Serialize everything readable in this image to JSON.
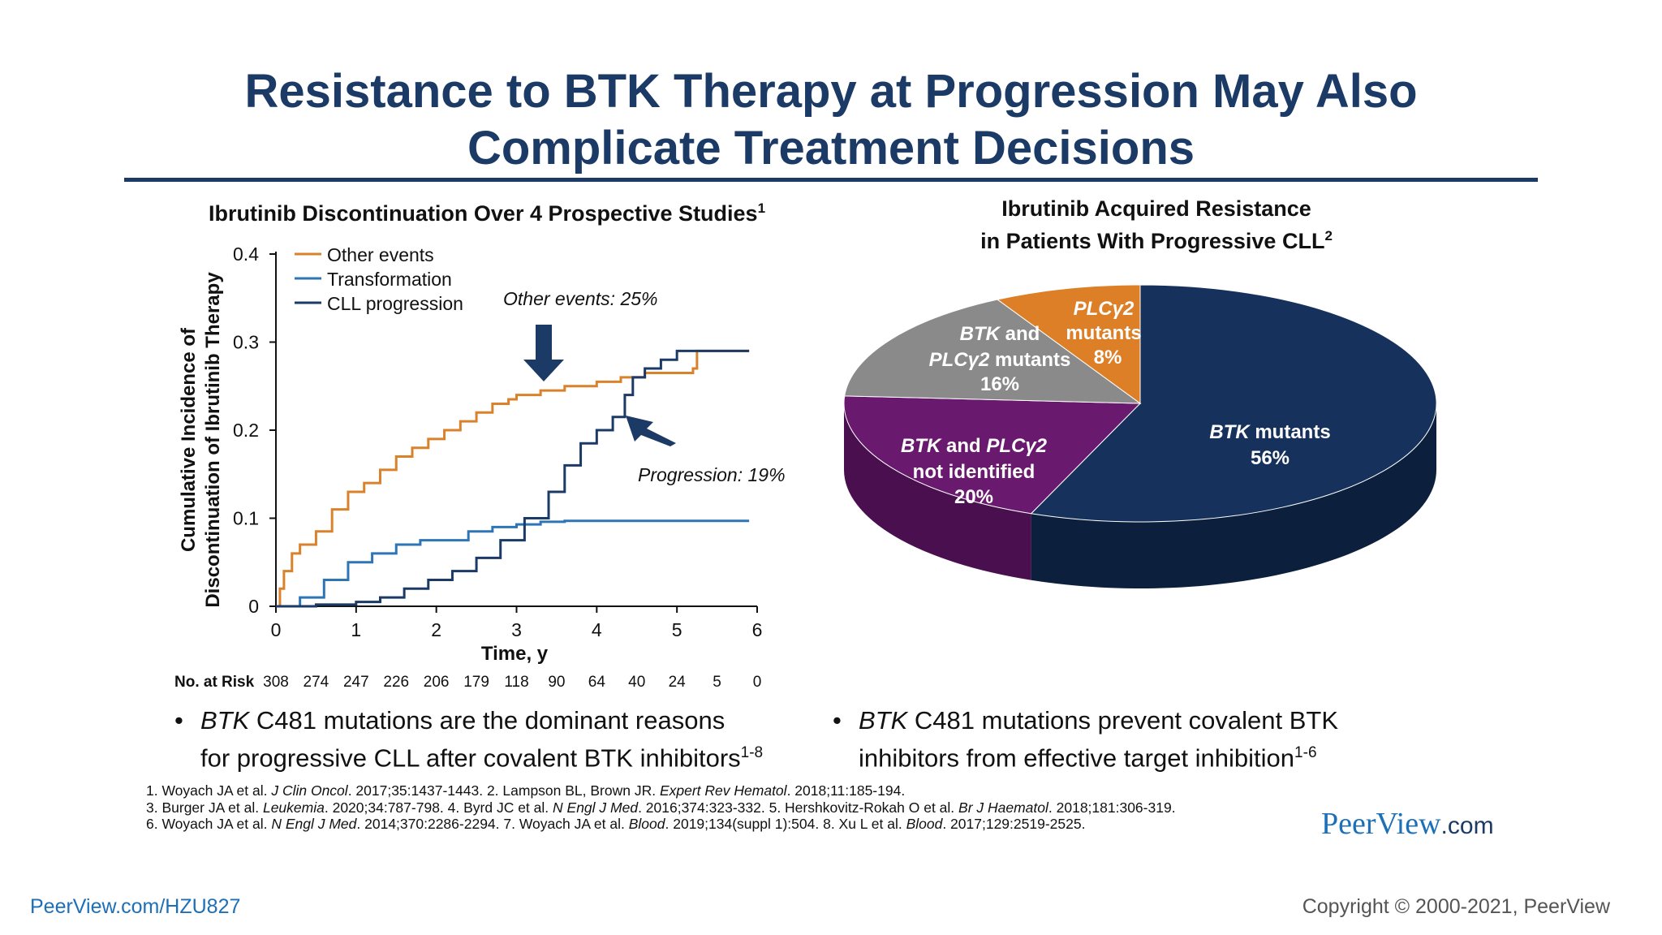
{
  "title_line1": "Resistance to BTK Therapy at Progression May Also",
  "title_line2": "Complicate Treatment Decisions",
  "colors": {
    "title": "#1b3a66",
    "other_events": "#d9822b",
    "transformation": "#2e75b6",
    "cll_progression": "#1b3a66",
    "pie_btk": "#16325c",
    "pie_none": "#6a1a6e",
    "pie_both": "#8a8a8a",
    "pie_plc": "#dc7f27"
  },
  "left_subhead": "Ibrutinib Discontinuation Over 4 Prospective Studies",
  "left_subhead_sup": "1",
  "right_subhead_line1": "Ibrutinib Acquired Resistance",
  "right_subhead_line2": "in Patients With Progressive CLL",
  "right_subhead_sup": "2",
  "chart_data": [
    {
      "type": "line",
      "title": "Ibrutinib Discontinuation Over 4 Prospective Studies",
      "xlabel": "Time, y",
      "ylabel": "Cumulative Incidence of Discontinuation of Ibrutinib Therapy",
      "xlim": [
        0,
        6
      ],
      "ylim": [
        0,
        0.4
      ],
      "x_ticks": [
        "0",
        "1",
        "2",
        "3",
        "4",
        "5",
        "6"
      ],
      "y_ticks": [
        "0",
        "0.1",
        "0.2",
        "0.3",
        "0.4"
      ],
      "legend_position": "top-left",
      "series": [
        {
          "name": "Other events",
          "color": "#d9822b",
          "points": [
            [
              0,
              0
            ],
            [
              0.05,
              0.02
            ],
            [
              0.1,
              0.04
            ],
            [
              0.2,
              0.06
            ],
            [
              0.3,
              0.07
            ],
            [
              0.5,
              0.085
            ],
            [
              0.7,
              0.11
            ],
            [
              0.9,
              0.13
            ],
            [
              1.1,
              0.14
            ],
            [
              1.3,
              0.155
            ],
            [
              1.5,
              0.17
            ],
            [
              1.7,
              0.18
            ],
            [
              1.9,
              0.19
            ],
            [
              2.1,
              0.2
            ],
            [
              2.3,
              0.21
            ],
            [
              2.5,
              0.22
            ],
            [
              2.7,
              0.23
            ],
            [
              2.9,
              0.235
            ],
            [
              3.0,
              0.24
            ],
            [
              3.3,
              0.245
            ],
            [
              3.6,
              0.25
            ],
            [
              4.0,
              0.255
            ],
            [
              4.3,
              0.26
            ],
            [
              4.6,
              0.265
            ],
            [
              5.0,
              0.265
            ],
            [
              5.2,
              0.27
            ],
            [
              5.25,
              0.29
            ],
            [
              5.9,
              0.29
            ]
          ]
        },
        {
          "name": "Transformation",
          "color": "#2e75b6",
          "points": [
            [
              0,
              0
            ],
            [
              0.3,
              0.01
            ],
            [
              0.6,
              0.03
            ],
            [
              0.9,
              0.05
            ],
            [
              1.2,
              0.06
            ],
            [
              1.5,
              0.07
            ],
            [
              1.8,
              0.075
            ],
            [
              2.1,
              0.075
            ],
            [
              2.4,
              0.085
            ],
            [
              2.7,
              0.09
            ],
            [
              3.0,
              0.093
            ],
            [
              3.3,
              0.096
            ],
            [
              3.6,
              0.097
            ],
            [
              4.2,
              0.097
            ],
            [
              5.9,
              0.097
            ]
          ]
        },
        {
          "name": "CLL progression",
          "color": "#1b3a66",
          "points": [
            [
              0,
              0
            ],
            [
              0.5,
              0.002
            ],
            [
              1.0,
              0.005
            ],
            [
              1.3,
              0.01
            ],
            [
              1.6,
              0.02
            ],
            [
              1.9,
              0.03
            ],
            [
              2.2,
              0.04
            ],
            [
              2.5,
              0.055
            ],
            [
              2.8,
              0.075
            ],
            [
              3.1,
              0.1
            ],
            [
              3.4,
              0.13
            ],
            [
              3.6,
              0.16
            ],
            [
              3.8,
              0.185
            ],
            [
              4.0,
              0.2
            ],
            [
              4.2,
              0.215
            ],
            [
              4.35,
              0.24
            ],
            [
              4.45,
              0.26
            ],
            [
              4.6,
              0.27
            ],
            [
              4.8,
              0.28
            ],
            [
              5.0,
              0.29
            ],
            [
              5.9,
              0.29
            ]
          ]
        }
      ],
      "annotations": [
        "Other events: 25%",
        "Progression: 19%"
      ],
      "risk_table": {
        "label": "No. at Risk",
        "values": [
          "308",
          "274",
          "247",
          "226",
          "206",
          "179",
          "118",
          "90",
          "64",
          "40",
          "24",
          "5",
          "0"
        ]
      }
    },
    {
      "type": "pie",
      "title": "Ibrutinib Acquired Resistance in Patients With Progressive CLL",
      "slices": [
        {
          "label": "BTK mutants",
          "value": 56
        },
        {
          "label": "BTK and PLCγ2 not identified",
          "value": 20
        },
        {
          "label": "BTK and PLCγ2 mutants",
          "value": 16
        },
        {
          "label": "PLCγ2 mutants",
          "value": 8
        }
      ]
    }
  ],
  "pie_labels": {
    "btk_a": "BTK",
    "btk_b": " mutants",
    "btk_pct": "56%",
    "none_a": "BTK",
    "none_b": " and ",
    "none_c": "PLCγ2",
    "none_line2": "not identified",
    "none_pct": "20%",
    "both_a": "BTK",
    "both_b": " and",
    "both_c": "PLCγ2",
    "both_d": " mutants",
    "both_pct": "16%",
    "plc_a": "PLCγ2",
    "plc_line2": "mutants",
    "plc_pct": "8%"
  },
  "legend": {
    "other": "Other events",
    "transformation": "Transformation",
    "cll": "CLL progression"
  },
  "annotations": {
    "other": "Other events: 25%",
    "progression": "Progression: 19%"
  },
  "axis": {
    "x_title": "Time, y",
    "y_title_line1": "Cumulative Incidence of",
    "y_title_line2": "Discontinuation of Ibrutinib Therapy"
  },
  "risk_label": "No. at Risk",
  "bullet1": {
    "italic": "BTK",
    "text1": " C481 mutations are the dominant reasons",
    "text2": "for progressive CLL after covalent BTK inhibitors",
    "sup": "1-8"
  },
  "bullet2": {
    "italic": "BTK",
    "text1": " C481 mutations prevent covalent BTK",
    "text2": "inhibitors from effective target inhibition",
    "sup": "1-6"
  },
  "refs": {
    "r1a": "1. Woyach JA et al. ",
    "r1b": "J Clin Oncol",
    "r1c": ". 2017;35:1437-1443. 2. Lampson BL, Brown JR. ",
    "r1d": "Expert Rev Hematol",
    "r1e": ". 2018;11:185-194.",
    "r2a": "3. Burger JA et al. ",
    "r2b": "Leukemia",
    "r2c": ". 2020;34:787-798. 4. Byrd JC et al. ",
    "r2d": "N Engl J Med",
    "r2e": ". 2016;374:323-332. 5. Hershkovitz-Rokah O et al. ",
    "r2f": "Br J Haematol",
    "r2g": ". 2018;181:306-319.",
    "r3a": "6. Woyach JA et al. ",
    "r3b": "N Engl J Med",
    "r3c": ". 2014;370:2286-2294. 7. Woyach JA et al. ",
    "r3d": "Blood",
    "r3e": ". 2019;134(suppl 1):504. 8. Xu L et al. ",
    "r3f": "Blood",
    "r3g": ". 2017;129:2519-2525."
  },
  "brand": {
    "name": "PeerView",
    "suffix": ".com"
  },
  "footer_link": "PeerView.com/HZU827",
  "copyright": "Copyright © 2000-2021, PeerView"
}
